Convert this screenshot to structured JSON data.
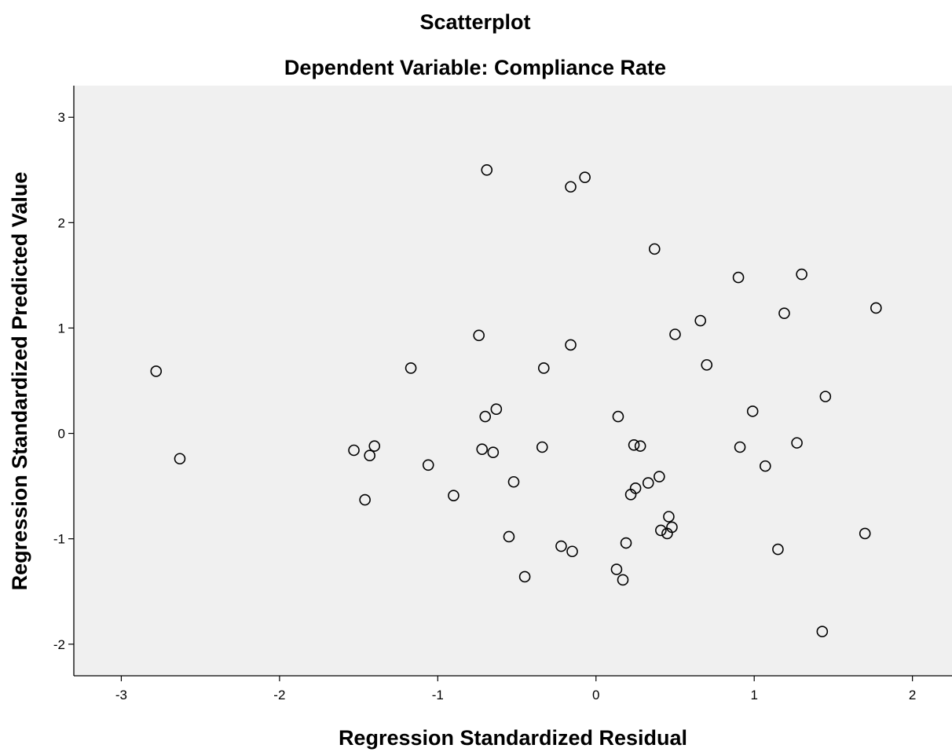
{
  "chart_data": {
    "type": "scatter",
    "title": "Scatterplot",
    "subtitle": "Dependent Variable: Compliance Rate",
    "xlabel": "Regression Standardized Residual",
    "ylabel": "Regression Standardized Predicted Value",
    "xlim": [
      -3.3,
      2.25
    ],
    "ylim": [
      -2.3,
      3.3
    ],
    "x_ticks": [
      -3,
      -2,
      -1,
      0,
      1,
      2
    ],
    "y_ticks": [
      -2,
      -1,
      0,
      1,
      2,
      3
    ],
    "x_tick_labels": [
      "-3",
      "-2",
      "-1",
      "0",
      "1",
      "2"
    ],
    "y_tick_labels": [
      "-2",
      "-1",
      "0",
      "1",
      "2",
      "3"
    ],
    "grid": false,
    "plot_background": "#f0f0f0",
    "marker_color": "#000000",
    "points": [
      {
        "x": -0.69,
        "y": 2.5
      },
      {
        "x": -0.07,
        "y": 2.43
      },
      {
        "x": -0.16,
        "y": 2.34
      },
      {
        "x": 0.37,
        "y": 1.75
      },
      {
        "x": 0.9,
        "y": 1.48
      },
      {
        "x": 1.3,
        "y": 1.51
      },
      {
        "x": 1.77,
        "y": 1.19
      },
      {
        "x": 1.19,
        "y": 1.14
      },
      {
        "x": 0.66,
        "y": 1.07
      },
      {
        "x": 0.5,
        "y": 0.94
      },
      {
        "x": -0.74,
        "y": 0.93
      },
      {
        "x": -0.16,
        "y": 0.84
      },
      {
        "x": -2.78,
        "y": 0.59
      },
      {
        "x": -1.17,
        "y": 0.62
      },
      {
        "x": -0.33,
        "y": 0.62
      },
      {
        "x": 0.7,
        "y": 0.65
      },
      {
        "x": 1.45,
        "y": 0.35
      },
      {
        "x": -0.63,
        "y": 0.23
      },
      {
        "x": -0.7,
        "y": 0.16
      },
      {
        "x": 0.14,
        "y": 0.16
      },
      {
        "x": 0.99,
        "y": 0.21
      },
      {
        "x": -2.63,
        "y": -0.24
      },
      {
        "x": -1.53,
        "y": -0.16
      },
      {
        "x": -1.4,
        "y": -0.12
      },
      {
        "x": -1.43,
        "y": -0.21
      },
      {
        "x": -0.72,
        "y": -0.15
      },
      {
        "x": -0.65,
        "y": -0.18
      },
      {
        "x": -0.34,
        "y": -0.13
      },
      {
        "x": 0.24,
        "y": -0.11
      },
      {
        "x": 0.28,
        "y": -0.12
      },
      {
        "x": 0.91,
        "y": -0.13
      },
      {
        "x": 1.27,
        "y": -0.09
      },
      {
        "x": 1.07,
        "y": -0.31
      },
      {
        "x": -1.06,
        "y": -0.3
      },
      {
        "x": -0.52,
        "y": -0.46
      },
      {
        "x": 0.4,
        "y": -0.41
      },
      {
        "x": 0.33,
        "y": -0.47
      },
      {
        "x": 0.25,
        "y": -0.52
      },
      {
        "x": 0.22,
        "y": -0.58
      },
      {
        "x": -1.46,
        "y": -0.63
      },
      {
        "x": -0.9,
        "y": -0.59
      },
      {
        "x": 0.46,
        "y": -0.79
      },
      {
        "x": 0.48,
        "y": -0.89
      },
      {
        "x": 0.41,
        "y": -0.92
      },
      {
        "x": 0.45,
        "y": -0.95
      },
      {
        "x": 1.7,
        "y": -0.95
      },
      {
        "x": -0.55,
        "y": -0.98
      },
      {
        "x": -0.22,
        "y": -1.07
      },
      {
        "x": -0.15,
        "y": -1.12
      },
      {
        "x": 0.19,
        "y": -1.04
      },
      {
        "x": 1.15,
        "y": -1.1
      },
      {
        "x": 0.13,
        "y": -1.29
      },
      {
        "x": 0.17,
        "y": -1.39
      },
      {
        "x": -0.45,
        "y": -1.36
      },
      {
        "x": 1.43,
        "y": -1.88
      }
    ]
  }
}
